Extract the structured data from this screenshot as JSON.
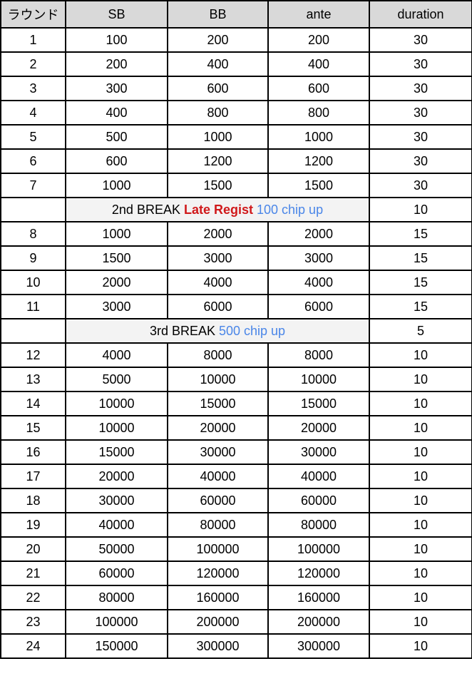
{
  "headers": [
    "ラウンド",
    "SB",
    "BB",
    "ante",
    "duration"
  ],
  "rows": [
    {
      "type": "level",
      "round": "1",
      "sb": "100",
      "bb": "200",
      "ante": "200",
      "duration": "30"
    },
    {
      "type": "level",
      "round": "2",
      "sb": "200",
      "bb": "400",
      "ante": "400",
      "duration": "30"
    },
    {
      "type": "level",
      "round": "3",
      "sb": "300",
      "bb": "600",
      "ante": "600",
      "duration": "30"
    },
    {
      "type": "level",
      "round": "4",
      "sb": "400",
      "bb": "800",
      "ante": "800",
      "duration": "30"
    },
    {
      "type": "level",
      "round": "5",
      "sb": "500",
      "bb": "1000",
      "ante": "1000",
      "duration": "30"
    },
    {
      "type": "level",
      "round": "6",
      "sb": "600",
      "bb": "1200",
      "ante": "1200",
      "duration": "30"
    },
    {
      "type": "level",
      "round": "7",
      "sb": "1000",
      "bb": "1500",
      "ante": "1500",
      "duration": "30"
    },
    {
      "type": "break",
      "label": "2nd BREAK ",
      "highlight": "Late Regist",
      "note": " 100 chip up",
      "duration": "10"
    },
    {
      "type": "level",
      "round": "8",
      "sb": "1000",
      "bb": "2000",
      "ante": "2000",
      "duration": "15"
    },
    {
      "type": "level",
      "round": "9",
      "sb": "1500",
      "bb": "3000",
      "ante": "3000",
      "duration": "15"
    },
    {
      "type": "level",
      "round": "10",
      "sb": "2000",
      "bb": "4000",
      "ante": "4000",
      "duration": "15"
    },
    {
      "type": "level",
      "round": "11",
      "sb": "3000",
      "bb": "6000",
      "ante": "6000",
      "duration": "15"
    },
    {
      "type": "break",
      "label": "3rd BREAK ",
      "highlight": "",
      "note": "500 chip up",
      "duration": "5"
    },
    {
      "type": "level",
      "round": "12",
      "sb": "4000",
      "bb": "8000",
      "ante": "8000",
      "duration": "10"
    },
    {
      "type": "level",
      "round": "13",
      "sb": "5000",
      "bb": "10000",
      "ante": "10000",
      "duration": "10"
    },
    {
      "type": "level",
      "round": "14",
      "sb": "10000",
      "bb": "15000",
      "ante": "15000",
      "duration": "10"
    },
    {
      "type": "level",
      "round": "15",
      "sb": "10000",
      "bb": "20000",
      "ante": "20000",
      "duration": "10"
    },
    {
      "type": "level",
      "round": "16",
      "sb": "15000",
      "bb": "30000",
      "ante": "30000",
      "duration": "10"
    },
    {
      "type": "level",
      "round": "17",
      "sb": "20000",
      "bb": "40000",
      "ante": "40000",
      "duration": "10"
    },
    {
      "type": "level",
      "round": "18",
      "sb": "30000",
      "bb": "60000",
      "ante": "60000",
      "duration": "10"
    },
    {
      "type": "level",
      "round": "19",
      "sb": "40000",
      "bb": "80000",
      "ante": "80000",
      "duration": "10"
    },
    {
      "type": "level",
      "round": "20",
      "sb": "50000",
      "bb": "100000",
      "ante": "100000",
      "duration": "10"
    },
    {
      "type": "level",
      "round": "21",
      "sb": "60000",
      "bb": "120000",
      "ante": "120000",
      "duration": "10"
    },
    {
      "type": "level",
      "round": "22",
      "sb": "80000",
      "bb": "160000",
      "ante": "160000",
      "duration": "10"
    },
    {
      "type": "level",
      "round": "23",
      "sb": "100000",
      "bb": "200000",
      "ante": "200000",
      "duration": "10"
    },
    {
      "type": "level",
      "round": "24",
      "sb": "150000",
      "bb": "300000",
      "ante": "300000",
      "duration": "10"
    }
  ],
  "colors": {
    "header_bg": "#d9d9d9",
    "break_bg": "#f3f3f3",
    "highlight": "#d0191b",
    "note": "#4a86e8"
  }
}
